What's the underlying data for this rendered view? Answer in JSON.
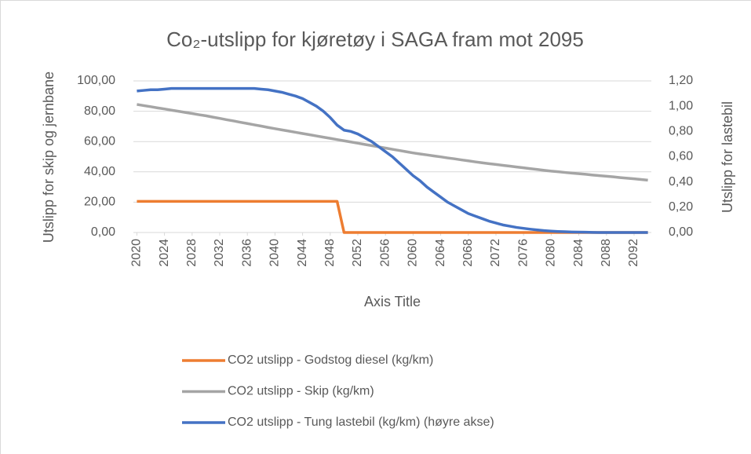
{
  "chart_data": {
    "type": "line",
    "title": "Co₂-utslipp for kjøretøy i SAGA fram mot 2095",
    "x_label": "Axis Title",
    "y_label": "Utslipp for skip og jernbane",
    "y2_label": "Utslipp for lastebil",
    "x": [
      2020,
      2021,
      2022,
      2023,
      2024,
      2025,
      2026,
      2027,
      2028,
      2029,
      2030,
      2031,
      2032,
      2033,
      2034,
      2035,
      2036,
      2037,
      2038,
      2039,
      2040,
      2041,
      2042,
      2043,
      2044,
      2045,
      2046,
      2047,
      2048,
      2049,
      2050,
      2051,
      2052,
      2053,
      2054,
      2055,
      2056,
      2057,
      2058,
      2059,
      2060,
      2061,
      2062,
      2063,
      2064,
      2065,
      2066,
      2067,
      2068,
      2069,
      2070,
      2071,
      2072,
      2073,
      2074,
      2075,
      2076,
      2077,
      2078,
      2079,
      2080,
      2081,
      2082,
      2083,
      2084,
      2085,
      2086,
      2087,
      2088,
      2089,
      2090,
      2091,
      2092,
      2093,
      2094
    ],
    "xlim": [
      2019.5,
      2094.5
    ],
    "xticks": [
      2020,
      2024,
      2028,
      2032,
      2036,
      2040,
      2044,
      2048,
      2052,
      2056,
      2060,
      2064,
      2068,
      2072,
      2076,
      2080,
      2084,
      2088,
      2092
    ],
    "ylim": [
      0,
      100
    ],
    "yticks": [
      {
        "value": 0,
        "label": "0,00"
      },
      {
        "value": 20,
        "label": "20,00"
      },
      {
        "value": 40,
        "label": "40,00"
      },
      {
        "value": 60,
        "label": "60,00"
      },
      {
        "value": 80,
        "label": "80,00"
      },
      {
        "value": 100,
        "label": "100,00"
      }
    ],
    "y2lim": [
      0,
      1.2
    ],
    "y2ticks": [
      {
        "value": 0,
        "label": "0,00"
      },
      {
        "value": 0.2,
        "label": "0,20"
      },
      {
        "value": 0.4,
        "label": "0,40"
      },
      {
        "value": 0.6,
        "label": "0,60"
      },
      {
        "value": 0.8,
        "label": "0,80"
      },
      {
        "value": 1,
        "label": "1,00"
      },
      {
        "value": 1.2,
        "label": "1,20"
      }
    ],
    "grid": true,
    "legend": "bottom",
    "series": [
      {
        "name": "CO2 utslipp - Godstog diesel (kg/km)",
        "color": "#ed7d31",
        "values": [
          20.5,
          20.5,
          20.5,
          20.5,
          20.5,
          20.5,
          20.5,
          20.5,
          20.5,
          20.5,
          20.5,
          20.5,
          20.5,
          20.5,
          20.5,
          20.5,
          20.5,
          20.5,
          20.5,
          20.5,
          20.5,
          20.5,
          20.5,
          20.5,
          20.5,
          20.5,
          20.5,
          20.5,
          20.5,
          20.5,
          0,
          0,
          0,
          0,
          0,
          0,
          0,
          0,
          0,
          0,
          0,
          0,
          0,
          0,
          0,
          0,
          0,
          0,
          0,
          0,
          0,
          0,
          0,
          0,
          0,
          0,
          0,
          0,
          0,
          0,
          0,
          0,
          0,
          0,
          0,
          0,
          0,
          0,
          0,
          0,
          0,
          0,
          0,
          0,
          0
        ]
      },
      {
        "name": "CO2 utslipp - Skip (kg/km)",
        "color": "#a5a5a5",
        "values": [
          84.5,
          83.7,
          83.0,
          82.2,
          81.5,
          80.7,
          80.0,
          79.2,
          78.5,
          77.7,
          77.0,
          76.1,
          75.3,
          74.4,
          73.6,
          72.7,
          71.9,
          71.0,
          70.2,
          69.3,
          68.5,
          67.7,
          66.9,
          66.1,
          65.3,
          64.5,
          63.7,
          62.9,
          62.1,
          61.3,
          60.5,
          59.7,
          58.9,
          58.1,
          57.3,
          56.5,
          55.7,
          54.9,
          54.1,
          53.3,
          52.5,
          51.8,
          51.2,
          50.5,
          49.9,
          49.2,
          48.6,
          47.9,
          47.3,
          46.6,
          46.0,
          45.4,
          44.9,
          44.3,
          43.8,
          43.2,
          42.7,
          42.1,
          41.6,
          41.0,
          40.5,
          40.1,
          39.6,
          39.2,
          38.8,
          38.4,
          37.9,
          37.5,
          37.1,
          36.7,
          36.2,
          35.8,
          35.4,
          35.0,
          34.5
        ]
      },
      {
        "name": "CO2 utslipp - Tung lastebil (kg/km) (høyre akse)",
        "color": "#4472c4",
        "axis": "y2",
        "values": [
          1.12,
          1.125,
          1.13,
          1.13,
          1.135,
          1.14,
          1.14,
          1.14,
          1.14,
          1.14,
          1.14,
          1.14,
          1.14,
          1.14,
          1.14,
          1.14,
          1.14,
          1.14,
          1.135,
          1.13,
          1.12,
          1.11,
          1.095,
          1.08,
          1.06,
          1.03,
          1.0,
          0.96,
          0.91,
          0.85,
          0.81,
          0.8,
          0.78,
          0.75,
          0.72,
          0.68,
          0.64,
          0.6,
          0.55,
          0.5,
          0.45,
          0.41,
          0.36,
          0.32,
          0.28,
          0.24,
          0.21,
          0.18,
          0.15,
          0.13,
          0.11,
          0.09,
          0.075,
          0.06,
          0.05,
          0.04,
          0.033,
          0.026,
          0.02,
          0.015,
          0.011,
          0.008,
          0.006,
          0.004,
          0.003,
          0.002,
          0.001,
          0,
          0,
          0,
          0,
          0,
          0,
          0,
          0
        ]
      }
    ]
  }
}
